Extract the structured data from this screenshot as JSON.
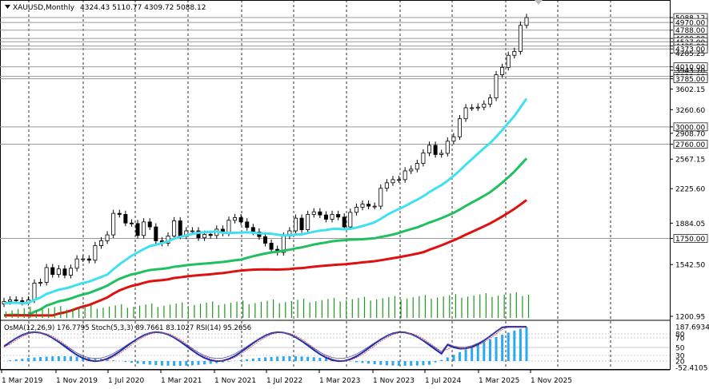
{
  "header": {
    "symbol": "XAUUSD,Monthly",
    "ohlc": "4324.43 5110.77 4309.72 5088.12"
  },
  "price_axis": {
    "ticks": [
      "5088.12",
      "4970.00",
      "4788.00",
      "4600.00",
      "4527.00",
      "4435.00",
      "4373.00",
      "4285.25",
      "4010.00",
      "3943.70",
      "3830.00",
      "3785.00",
      "3602.15",
      "3260.60",
      "3000.00",
      "2908.70",
      "2760.00",
      "2567.15",
      "2225.60",
      "1884.05",
      "1750.00",
      "1542.50",
      "1200.95"
    ],
    "boxed": [
      "5088.12",
      "4970.00",
      "4788.00",
      "4600.00",
      "4527.00",
      "4435.00",
      "4373.00",
      "4010.00",
      "3830.00",
      "3785.00",
      "3000.00",
      "2760.00",
      "1750.00"
    ]
  },
  "indicator": {
    "label": "OsMA(12,26,9) 176.7795  Stoch(5,3,3) 89.7661 83.1027  RSI(14) 95.2656",
    "scale": [
      "187.6934",
      "80",
      "70",
      "50",
      "30",
      "20",
      "-52.4105"
    ]
  },
  "time_axis": [
    "1 Mar 2019",
    "1 Nov 2019",
    "1 Jul 2020",
    "1 Mar 2021",
    "1 Nov 2021",
    "1 Jul 2022",
    "1 Mar 2023",
    "1 Nov 2023",
    "1 Jul 2024",
    "1 Mar 2025",
    "1 Nov 2025"
  ],
  "colors": {
    "bull": "#ffffff",
    "bear": "#000000",
    "ma_fast": "#40e0f0",
    "ma_mid": "#20c060",
    "ma_slow": "#e01010",
    "volume": "#1a9a1a",
    "osma": "#2aa8f0",
    "stoch": "#1a2ab0"
  },
  "chart_data": {
    "type": "candlestick",
    "symbol": "XAUUSD",
    "timeframe": "Monthly",
    "ylim": [
      1200.95,
      5088.12
    ],
    "candles_start": "2019-01",
    "close_path": [
      1290,
      1300,
      1295,
      1285,
      1300,
      1410,
      1415,
      1520,
      1470,
      1510,
      1465,
      1515,
      1585,
      1585,
      1575,
      1690,
      1730,
      1780,
      1975,
      1965,
      1885,
      1880,
      1775,
      1895,
      1850,
      1730,
      1710,
      1770,
      1905,
      1770,
      1815,
      1815,
      1755,
      1785,
      1775,
      1830,
      1795,
      1910,
      1935,
      1895,
      1845,
      1805,
      1765,
      1710,
      1660,
      1635,
      1770,
      1815,
      1930,
      1825,
      1965,
      1990,
      1960,
      1920,
      1965,
      1940,
      1850,
      1985,
      2035,
      2065,
      2045,
      2045,
      2230,
      2290,
      2325,
      2325,
      2425,
      2445,
      2515,
      2645,
      2745,
      2625,
      2640,
      2800,
      2860,
      3120,
      3290,
      3290,
      3300,
      3350,
      3450,
      3860,
      4000,
      4240,
      4320,
      4900,
      5088
    ],
    "levels": [
      5088.12,
      4970.0,
      4788.0,
      4600.0,
      4527.0,
      4435.0,
      4373.0,
      4010.0,
      3830.0,
      3785.0,
      3000.0,
      2760.0,
      1750.0
    ]
  }
}
